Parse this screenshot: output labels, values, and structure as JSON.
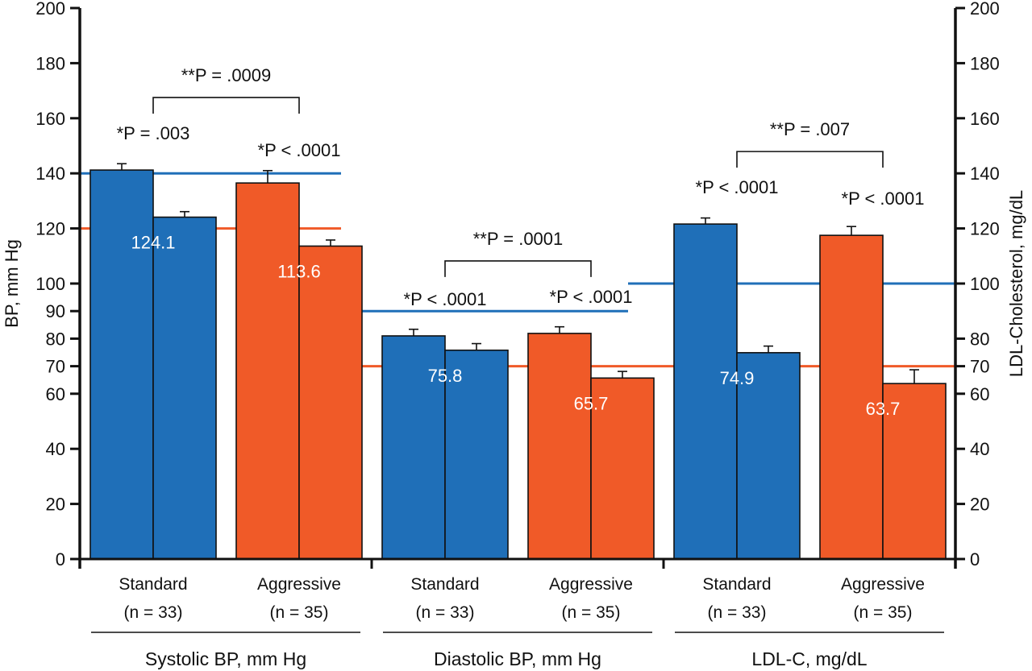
{
  "chart_data": {
    "type": "bar",
    "title": "",
    "ylabel_left": "BP, mm Hg",
    "ylabel_right": "LDL-Cholesterol, mg/dL",
    "ylim": [
      0,
      200
    ],
    "left_ticks": [
      0,
      20,
      40,
      60,
      70,
      80,
      90,
      100,
      120,
      140,
      160,
      180,
      200
    ],
    "right_ticks": [
      0,
      20,
      40,
      60,
      70,
      80,
      100,
      120,
      140,
      160,
      180,
      200
    ],
    "grid": false,
    "colors": {
      "standard": "#1f6fb8",
      "aggressive": "#f05a28",
      "outline": "#111111"
    },
    "groups": [
      {
        "label": "Systolic BP, mm Hg",
        "targets": [
          {
            "arm": "standard",
            "value": 140
          },
          {
            "arm": "aggressive",
            "value": 120
          }
        ],
        "arms": [
          {
            "arm": "standard",
            "name": "Standard",
            "n_label": "(n = 33)",
            "baseline": 141.2,
            "baseline_err": 2.3,
            "followup": 124.1,
            "followup_err": 2.0,
            "followup_label": "124.1",
            "p_label": "*P = .003"
          },
          {
            "arm": "aggressive",
            "name": "Aggressive",
            "n_label": "(n = 35)",
            "baseline": 136.5,
            "baseline_err": 4.5,
            "followup": 113.6,
            "followup_err": 2.2,
            "followup_label": "113.6",
            "p_label": "*P < .0001"
          }
        ],
        "between_p_label": "**P = .0009"
      },
      {
        "label": "Diastolic BP, mm Hg",
        "targets": [
          {
            "arm": "standard",
            "value": 90
          },
          {
            "arm": "aggressive",
            "value": 70
          }
        ],
        "arms": [
          {
            "arm": "standard",
            "name": "Standard",
            "n_label": "(n = 33)",
            "baseline": 81.0,
            "baseline_err": 2.4,
            "followup": 75.8,
            "followup_err": 2.4,
            "followup_label": "75.8",
            "p_label": "*P < .0001"
          },
          {
            "arm": "aggressive",
            "name": "Aggressive",
            "n_label": "(n = 35)",
            "baseline": 81.9,
            "baseline_err": 2.4,
            "followup": 65.7,
            "followup_err": 2.4,
            "followup_label": "65.7",
            "p_label": "*P < .0001"
          }
        ],
        "between_p_label": "**P = .0001"
      },
      {
        "label": "LDL-C, mg/dL",
        "targets": [
          {
            "arm": "standard",
            "value": 100
          },
          {
            "arm": "aggressive",
            "value": 70
          }
        ],
        "arms": [
          {
            "arm": "standard",
            "name": "Standard",
            "n_label": "(n = 33)",
            "baseline": 121.6,
            "baseline_err": 2.2,
            "followup": 74.9,
            "followup_err": 2.4,
            "followup_label": "74.9",
            "p_label": "*P < .0001"
          },
          {
            "arm": "aggressive",
            "name": "Aggressive",
            "n_label": "(n = 35)",
            "baseline": 117.5,
            "baseline_err": 3.2,
            "followup": 63.7,
            "followup_err": 5.0,
            "followup_label": "63.7",
            "p_label": "*P < .0001"
          }
        ],
        "between_p_label": "**P = .007"
      }
    ]
  }
}
